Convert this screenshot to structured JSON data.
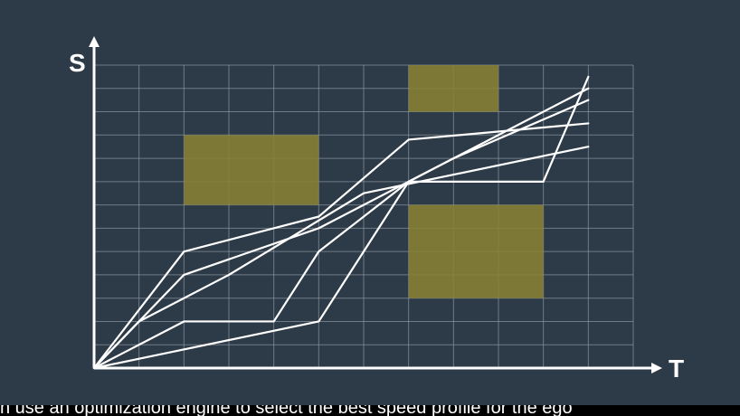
{
  "chart_data": {
    "type": "line",
    "xlabel": "T",
    "ylabel": "S",
    "grid": true,
    "xlim": [
      0,
      12
    ],
    "ylim": [
      0,
      13
    ],
    "obstacles": [
      {
        "x": [
          2,
          5
        ],
        "y": [
          7,
          10
        ]
      },
      {
        "x": [
          7,
          9
        ],
        "y": [
          11,
          13
        ]
      },
      {
        "x": [
          7,
          10
        ],
        "y": [
          3,
          7
        ]
      }
    ],
    "series": [
      {
        "points": [
          [
            0,
            0
          ],
          [
            2,
            5
          ],
          [
            5,
            6.5
          ],
          [
            7,
            9.8
          ],
          [
            11,
            10.5
          ]
        ]
      },
      {
        "points": [
          [
            0,
            0
          ],
          [
            2,
            4
          ],
          [
            5,
            6
          ],
          [
            8,
            9
          ],
          [
            11,
            11.5
          ]
        ]
      },
      {
        "points": [
          [
            0,
            0
          ],
          [
            1,
            2
          ],
          [
            3,
            4
          ],
          [
            6,
            7.5
          ],
          [
            11,
            9.5
          ]
        ]
      },
      {
        "points": [
          [
            0,
            0
          ],
          [
            2,
            2
          ],
          [
            4,
            2
          ],
          [
            5,
            5
          ],
          [
            7,
            8
          ],
          [
            10,
            8
          ],
          [
            11,
            12.5
          ]
        ]
      },
      {
        "points": [
          [
            0,
            0
          ],
          [
            5,
            2
          ],
          [
            7,
            8
          ],
          [
            11,
            12
          ]
        ]
      }
    ],
    "colors": {
      "background": "#2d3a47",
      "grid": "#8b96a1",
      "lines": "#ffffff",
      "obstacle": "#8a8136"
    }
  },
  "caption": "n use an optimization engine to select the best speed profile for the ego"
}
